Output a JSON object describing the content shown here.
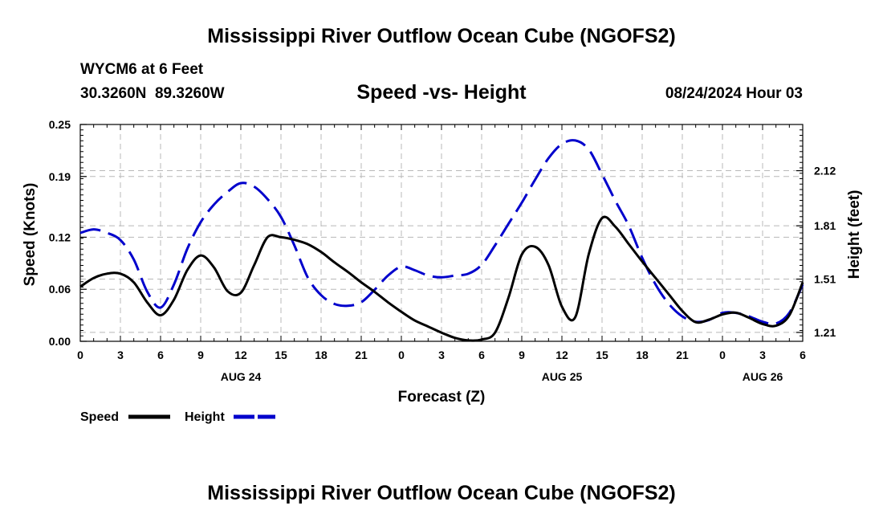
{
  "header": {
    "title": "Mississippi River Outflow Ocean Cube (NGOFS2)",
    "station": "WYCM6 at 6 Feet",
    "coords": "30.3260N  89.3260W",
    "subtitle": "Speed -vs- Height",
    "datetime": "08/24/2024 Hour 03"
  },
  "footer": {
    "title": "Mississippi River Outflow Ocean Cube (NGOFS2)"
  },
  "chart_data": {
    "type": "line",
    "title": "Speed -vs- Height",
    "xlabel": "Forecast (Z)",
    "ylabel": "Speed (Knots)",
    "y2label": "Height (feet)",
    "xlim": [
      0,
      54
    ],
    "ylim": [
      0,
      0.25
    ],
    "y2lim": [
      1.16,
      2.38
    ],
    "x_ticks": [
      0,
      3,
      6,
      9,
      12,
      15,
      18,
      21,
      24,
      27,
      30,
      33,
      36,
      39,
      42,
      45,
      48,
      51,
      54
    ],
    "x_tick_labels": [
      "0",
      "3",
      "6",
      "9",
      "12",
      "15",
      "18",
      "21",
      "0",
      "3",
      "6",
      "9",
      "12",
      "15",
      "18",
      "21",
      "0",
      "3",
      "6"
    ],
    "date_labels": [
      {
        "x": 12,
        "label": "AUG 24"
      },
      {
        "x": 36,
        "label": "AUG 25"
      },
      {
        "x": 51,
        "label": "AUG 26"
      }
    ],
    "y_ticks": [
      0.0,
      0.06,
      0.12,
      0.19,
      0.25
    ],
    "y_tick_labels": [
      "0.00",
      "0.06",
      "0.12",
      "0.19",
      "0.25"
    ],
    "y2_ticks": [
      1.21,
      1.51,
      1.81,
      2.12
    ],
    "y2_tick_labels": [
      "1.21",
      "1.51",
      "1.81",
      "2.12"
    ],
    "grid": true,
    "legend_position": "bottom-left",
    "series": [
      {
        "name": "Speed",
        "axis": "left",
        "color": "#000000",
        "dash": "solid",
        "x": [
          0,
          1,
          2,
          3,
          4,
          5,
          6,
          7,
          8,
          9,
          10,
          11,
          12,
          13,
          14,
          15,
          16,
          17,
          18,
          19,
          20,
          21,
          22,
          23,
          24,
          25,
          26,
          27,
          28,
          29,
          30,
          31,
          32,
          33,
          34,
          35,
          36,
          37,
          38,
          39,
          40,
          41,
          42,
          43,
          44,
          45,
          46,
          47,
          48,
          49,
          50,
          51,
          52,
          53,
          54
        ],
        "values": [
          0.063,
          0.073,
          0.078,
          0.078,
          0.068,
          0.045,
          0.03,
          0.048,
          0.082,
          0.099,
          0.085,
          0.058,
          0.056,
          0.088,
          0.12,
          0.12,
          0.117,
          0.112,
          0.103,
          0.091,
          0.08,
          0.068,
          0.057,
          0.045,
          0.034,
          0.024,
          0.017,
          0.01,
          0.004,
          0.001,
          0.002,
          0.01,
          0.05,
          0.1,
          0.109,
          0.088,
          0.04,
          0.028,
          0.1,
          0.142,
          0.132,
          0.112,
          0.092,
          0.073,
          0.054,
          0.035,
          0.022,
          0.025,
          0.031,
          0.033,
          0.027,
          0.02,
          0.018,
          0.03,
          0.068
        ]
      },
      {
        "name": "Height",
        "axis": "right",
        "color": "#0000cc",
        "dash": "dashed",
        "x": [
          0,
          1,
          2,
          3,
          4,
          5,
          6,
          7,
          8,
          9,
          10,
          11,
          12,
          13,
          14,
          15,
          16,
          17,
          18,
          19,
          20,
          21,
          22,
          23,
          24,
          25,
          26,
          27,
          28,
          29,
          30,
          31,
          32,
          33,
          34,
          35,
          36,
          37,
          38,
          39,
          40,
          41,
          42,
          43,
          44,
          45,
          46,
          47,
          48,
          49,
          50,
          51,
          52,
          53,
          54
        ],
        "values": [
          1.77,
          1.79,
          1.77,
          1.73,
          1.62,
          1.44,
          1.35,
          1.48,
          1.68,
          1.83,
          1.93,
          2.0,
          2.05,
          2.03,
          1.96,
          1.86,
          1.7,
          1.52,
          1.42,
          1.37,
          1.36,
          1.38,
          1.45,
          1.53,
          1.58,
          1.56,
          1.53,
          1.52,
          1.53,
          1.54,
          1.59,
          1.7,
          1.82,
          1.94,
          2.07,
          2.19,
          2.27,
          2.29,
          2.24,
          2.1,
          1.95,
          1.81,
          1.63,
          1.48,
          1.37,
          1.3,
          1.27,
          1.28,
          1.32,
          1.32,
          1.3,
          1.27,
          1.26,
          1.32,
          1.48
        ]
      }
    ]
  }
}
